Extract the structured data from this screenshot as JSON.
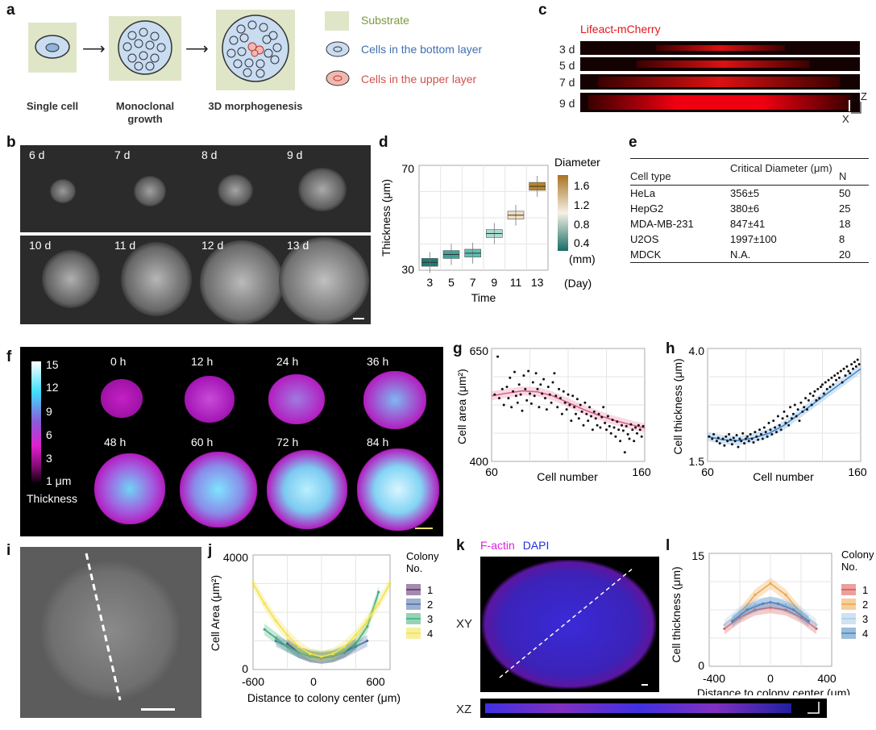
{
  "panels": {
    "a": "a",
    "b": "b",
    "c": "c",
    "d": "d",
    "e": "e",
    "f": "f",
    "g": "g",
    "h": "h",
    "i": "i",
    "j": "j",
    "k": "k",
    "l": "l"
  },
  "panel_a": {
    "captions": [
      "Single cell",
      "Monoclonal growth",
      "3D morphogenesis"
    ],
    "legend": [
      {
        "label": "Substrate",
        "color": "#7a9a3c"
      },
      {
        "label": "Cells in the bottom layer",
        "color": "#3f6fb0"
      },
      {
        "label": "Cells in the upper layer",
        "color": "#d0524a"
      }
    ]
  },
  "panel_b": {
    "labels": [
      "6 d",
      "7 d",
      "8 d",
      "9 d",
      "10 d",
      "11 d",
      "12 d",
      "13 d"
    ]
  },
  "panel_c": {
    "title": "Lifeact-mCherry",
    "rows": [
      "3 d",
      "5 d",
      "7 d",
      "9 d"
    ],
    "axis_z": "Z",
    "axis_x": "X"
  },
  "panel_e": {
    "headers": [
      "Cell type",
      "Critical Diameter (μm)",
      "N"
    ],
    "rows": [
      [
        "HeLa",
        "356±5",
        "50"
      ],
      [
        "HepG2",
        "380±6",
        "25"
      ],
      [
        "MDA-MB-231",
        "847±41",
        "18"
      ],
      [
        "U2OS",
        "1997±100",
        "8"
      ],
      [
        "MDCK",
        "N.A.",
        "20"
      ]
    ]
  },
  "panel_f": {
    "times": [
      "0 h",
      "12 h",
      "24 h",
      "36 h",
      "48 h",
      "60 h",
      "72 h",
      "84 h"
    ],
    "colorbar_ticks": [
      "15",
      "12",
      "9",
      "6",
      "3",
      "1 μm"
    ],
    "colorbar_label": "Thickness"
  },
  "panel_i": {},
  "panel_k": {
    "legend_factin": "F-actin",
    "legend_dapi": "DAPI",
    "xy": "XY",
    "xz": "XZ"
  },
  "chart_data": [
    {
      "panel": "d",
      "type": "box",
      "categories": [
        "3",
        "5",
        "7",
        "9",
        "11",
        "13"
      ],
      "medians": [
        33,
        36,
        36.5,
        44,
        51,
        62
      ],
      "box_colors": [
        "#1e7b73",
        "#3aa59a",
        "#5fbfb1",
        "#a8dcd3",
        "#f2dfc0",
        "#b8862a"
      ],
      "xlabel": "Time",
      "ylabel": "Thickness (μm)",
      "x_unit": "(Day)",
      "ylim": [
        30,
        70
      ],
      "yticks": [
        "30",
        "70"
      ],
      "colorbar_title": "Diameter",
      "colorbar_ticks": [
        "1.6",
        "1.2",
        "0.8",
        "0.4"
      ],
      "colorbar_unit": "(mm)"
    },
    {
      "panel": "g",
      "type": "scatter",
      "xlabel": "Cell number",
      "ylabel": "Cell area (μm²)",
      "xlim": [
        60,
        160
      ],
      "ylim": [
        400,
        650
      ],
      "xticks": [
        "60",
        "160"
      ],
      "yticks": [
        "400",
        "650"
      ],
      "trend_x": [
        60,
        70,
        80,
        90,
        100,
        110,
        120,
        130,
        140,
        150,
        160
      ],
      "trend_y": [
        545,
        551,
        556,
        554,
        545,
        530,
        515,
        502,
        491,
        482,
        474
      ],
      "points": [
        [
          62,
          548
        ],
        [
          64,
          632
        ],
        [
          65,
          540
        ],
        [
          67,
          560
        ],
        [
          68,
          525
        ],
        [
          70,
          565
        ],
        [
          71,
          540
        ],
        [
          72,
          585
        ],
        [
          73,
          520
        ],
        [
          74,
          555
        ],
        [
          75,
          598
        ],
        [
          76,
          545
        ],
        [
          77,
          530
        ],
        [
          78,
          570
        ],
        [
          79,
          548
        ],
        [
          80,
          512
        ],
        [
          81,
          590
        ],
        [
          82,
          560
        ],
        [
          83,
          535
        ],
        [
          84,
          600
        ],
        [
          85,
          550
        ],
        [
          86,
          528
        ],
        [
          87,
          575
        ],
        [
          88,
          545
        ],
        [
          89,
          595
        ],
        [
          90,
          560
        ],
        [
          91,
          520
        ],
        [
          92,
          570
        ],
        [
          93,
          550
        ],
        [
          94,
          582
        ],
        [
          95,
          540
        ],
        [
          96,
          515
        ],
        [
          97,
          565
        ],
        [
          98,
          548
        ],
        [
          99,
          530
        ],
        [
          100,
          575
        ],
        [
          101,
          595
        ],
        [
          102,
          545
        ],
        [
          103,
          520
        ],
        [
          104,
          560
        ],
        [
          105,
          540
        ],
        [
          106,
          505
        ],
        [
          107,
          555
        ],
        [
          108,
          530
        ],
        [
          109,
          515
        ],
        [
          110,
          548
        ],
        [
          111,
          525
        ],
        [
          112,
          490
        ],
        [
          113,
          545
        ],
        [
          114,
          520
        ],
        [
          115,
          505
        ],
        [
          116,
          538
        ],
        [
          117,
          495
        ],
        [
          118,
          525
        ],
        [
          119,
          510
        ],
        [
          120,
          480
        ],
        [
          121,
          530
        ],
        [
          122,
          505
        ],
        [
          123,
          490
        ],
        [
          124,
          520
        ],
        [
          125,
          500
        ],
        [
          126,
          470
        ],
        [
          127,
          510
        ],
        [
          128,
          495
        ],
        [
          129,
          480
        ],
        [
          130,
          505
        ],
        [
          131,
          475
        ],
        [
          132,
          498
        ],
        [
          133,
          520
        ],
        [
          134,
          485
        ],
        [
          135,
          470
        ],
        [
          136,
          500
        ],
        [
          137,
          478
        ],
        [
          138,
          462
        ],
        [
          139,
          492
        ],
        [
          140,
          475
        ],
        [
          141,
          455
        ],
        [
          142,
          488
        ],
        [
          143,
          470
        ],
        [
          144,
          445
        ],
        [
          145,
          480
        ],
        [
          146,
          468
        ],
        [
          147,
          420
        ],
        [
          148,
          478
        ],
        [
          149,
          460
        ],
        [
          150,
          450
        ],
        [
          151,
          482
        ],
        [
          152,
          470
        ],
        [
          153,
          445
        ],
        [
          154,
          475
        ],
        [
          155,
          462
        ],
        [
          156,
          480
        ],
        [
          157,
          470
        ],
        [
          158,
          455
        ],
        [
          159,
          478
        ]
      ]
    },
    {
      "panel": "h",
      "type": "scatter",
      "xlabel": "Cell number",
      "ylabel": "Cell thickness (μm)",
      "xlim": [
        60,
        160
      ],
      "ylim": [
        1.5,
        4.0
      ],
      "xticks": [
        "60",
        "160"
      ],
      "yticks": [
        "1.5",
        "4.0"
      ],
      "trend_x": [
        60,
        70,
        80,
        90,
        100,
        110,
        120,
        130,
        140,
        150,
        160
      ],
      "trend_y": [
        2.05,
        1.98,
        1.96,
        2.02,
        2.12,
        2.3,
        2.55,
        2.8,
        3.05,
        3.3,
        3.55
      ],
      "points": [
        [
          61,
          2.05
        ],
        [
          63,
          2.0
        ],
        [
          64,
          2.1
        ],
        [
          66,
          1.95
        ],
        [
          67,
          2.02
        ],
        [
          68,
          1.9
        ],
        [
          70,
          2.0
        ],
        [
          71,
          1.85
        ],
        [
          72,
          2.05
        ],
        [
          73,
          1.95
        ],
        [
          74,
          2.1
        ],
        [
          75,
          1.98
        ],
        [
          76,
          1.88
        ],
        [
          77,
          2.02
        ],
        [
          78,
          1.95
        ],
        [
          79,
          2.08
        ],
        [
          80,
          1.82
        ],
        [
          81,
          2.0
        ],
        [
          82,
          1.95
        ],
        [
          83,
          2.12
        ],
        [
          84,
          1.9
        ],
        [
          85,
          2.0
        ],
        [
          86,
          2.05
        ],
        [
          87,
          1.95
        ],
        [
          88,
          2.1
        ],
        [
          89,
          2.0
        ],
        [
          90,
          1.92
        ],
        [
          91,
          2.15
        ],
        [
          92,
          2.05
        ],
        [
          93,
          1.98
        ],
        [
          94,
          2.2
        ],
        [
          95,
          2.1
        ],
        [
          96,
          2.0
        ],
        [
          97,
          2.25
        ],
        [
          98,
          2.15
        ],
        [
          99,
          2.05
        ],
        [
          100,
          2.35
        ],
        [
          101,
          2.2
        ],
        [
          102,
          2.1
        ],
        [
          103,
          2.4
        ],
        [
          104,
          2.25
        ],
        [
          105,
          2.15
        ],
        [
          106,
          2.5
        ],
        [
          107,
          2.3
        ],
        [
          108,
          2.2
        ],
        [
          109,
          2.45
        ],
        [
          110,
          2.6
        ],
        [
          111,
          2.35
        ],
        [
          112,
          2.5
        ],
        [
          113,
          2.3
        ],
        [
          114,
          2.7
        ],
        [
          115,
          2.45
        ],
        [
          116,
          2.55
        ],
        [
          117,
          2.75
        ],
        [
          118,
          2.5
        ],
        [
          119,
          2.65
        ],
        [
          120,
          2.4
        ],
        [
          121,
          2.8
        ],
        [
          122,
          2.6
        ],
        [
          123,
          2.7
        ],
        [
          124,
          2.9
        ],
        [
          125,
          2.65
        ],
        [
          126,
          2.85
        ],
        [
          127,
          3.0
        ],
        [
          128,
          2.75
        ],
        [
          129,
          2.95
        ],
        [
          130,
          3.05
        ],
        [
          131,
          2.85
        ],
        [
          132,
          3.1
        ],
        [
          133,
          2.9
        ],
        [
          134,
          3.15
        ],
        [
          135,
          3.2
        ],
        [
          136,
          3.0
        ],
        [
          137,
          3.25
        ],
        [
          138,
          3.1
        ],
        [
          139,
          3.3
        ],
        [
          140,
          3.15
        ],
        [
          141,
          3.35
        ],
        [
          142,
          3.2
        ],
        [
          143,
          3.4
        ],
        [
          144,
          3.3
        ],
        [
          145,
          3.45
        ],
        [
          146,
          3.35
        ],
        [
          147,
          3.5
        ],
        [
          148,
          3.25
        ],
        [
          149,
          3.55
        ],
        [
          150,
          3.4
        ],
        [
          151,
          3.6
        ],
        [
          152,
          3.5
        ],
        [
          153,
          3.45
        ],
        [
          154,
          3.65
        ],
        [
          155,
          3.55
        ],
        [
          156,
          3.7
        ],
        [
          157,
          3.6
        ],
        [
          158,
          3.75
        ],
        [
          159,
          3.65
        ]
      ]
    },
    {
      "panel": "j",
      "type": "line",
      "xlabel": "Distance to colony center (μm)",
      "ylabel": "Cell Area (μm²)",
      "xlim": [
        -600,
        600
      ],
      "ylim": [
        0,
        4000
      ],
      "xticks": [
        "-600",
        "0",
        "600"
      ],
      "yticks": [
        "0",
        "4000"
      ],
      "legend_title": "Colony No.",
      "series": [
        {
          "name": "1",
          "color": "#5b2a6e",
          "x": [
            -300,
            -200,
            -100,
            0,
            100,
            200,
            300
          ],
          "y": [
            900,
            600,
            450,
            400,
            450,
            600,
            900
          ]
        },
        {
          "name": "2",
          "color": "#4f6fa8",
          "x": [
            -400,
            -300,
            -200,
            -100,
            0,
            100,
            200,
            300,
            400
          ],
          "y": [
            1000,
            800,
            600,
            450,
            400,
            450,
            600,
            800,
            1000
          ]
        },
        {
          "name": "3",
          "color": "#3fae7a",
          "x": [
            -500,
            -400,
            -300,
            -200,
            -100,
            0,
            100,
            200,
            300,
            400,
            500
          ],
          "y": [
            1400,
            1100,
            800,
            600,
            500,
            450,
            500,
            650,
            900,
            1500,
            2700
          ]
        },
        {
          "name": "4",
          "color": "#f2e24a",
          "x": [
            -600,
            -500,
            -400,
            -300,
            -200,
            -100,
            0,
            100,
            200,
            300,
            400,
            500,
            600
          ],
          "y": [
            3000,
            2300,
            1700,
            1200,
            800,
            550,
            450,
            550,
            800,
            1200,
            1700,
            2300,
            3000
          ]
        }
      ]
    },
    {
      "panel": "l",
      "type": "line",
      "xlabel": "Distance to colony center (μm)",
      "ylabel": "Cell thickness (μm)",
      "xlim": [
        -400,
        400
      ],
      "ylim": [
        0,
        15
      ],
      "xticks": [
        "-400",
        "0",
        "400"
      ],
      "yticks": [
        "0",
        "15"
      ],
      "legend_title": "Colony No.",
      "series": [
        {
          "name": "1",
          "color": "#d9534f",
          "x": [
            -300,
            -200,
            -100,
            0,
            100,
            200,
            300
          ],
          "y": [
            5,
            6.5,
            7.5,
            7.8,
            7.5,
            6.5,
            5
          ]
        },
        {
          "name": "2",
          "color": "#f0a64a",
          "x": [
            -200,
            -100,
            0,
            100,
            200
          ],
          "y": [
            7,
            9.5,
            11,
            9.5,
            7
          ]
        },
        {
          "name": "3",
          "color": "#a9cbe8",
          "x": [
            -300,
            -200,
            -100,
            0,
            100,
            200,
            300
          ],
          "y": [
            5.5,
            7.2,
            8.2,
            8.5,
            8.2,
            7.2,
            5.5
          ]
        },
        {
          "name": "4",
          "color": "#4a86c0",
          "x": [
            -250,
            -150,
            -50,
            0,
            50,
            150,
            250
          ],
          "y": [
            6,
            7.5,
            8.3,
            8.5,
            8.3,
            7.5,
            6
          ]
        }
      ]
    }
  ]
}
